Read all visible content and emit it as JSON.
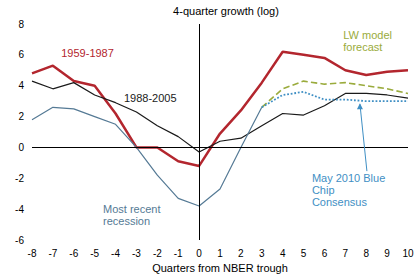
{
  "chart_data": {
    "type": "line",
    "x_label": "Quarters from NBER trough",
    "y_label": "4-quarter growth (log)",
    "x": [
      -8,
      -7,
      -6,
      -5,
      -4,
      -3,
      -2,
      -1,
      0,
      1,
      2,
      3,
      4,
      5,
      6,
      7,
      8,
      9,
      10
    ],
    "xlim": [
      -8,
      10
    ],
    "xticks": [
      -8,
      -7,
      -6,
      -5,
      -4,
      -3,
      -2,
      -1,
      0,
      1,
      2,
      3,
      4,
      5,
      6,
      7,
      8,
      9,
      10
    ],
    "ylim": [
      -6,
      8
    ],
    "yticks": [
      -6,
      -4,
      -2,
      0,
      2,
      4,
      6,
      8
    ],
    "grid": false,
    "series": [
      {
        "name": "1959-1987",
        "color": "#b3262e",
        "line_style": "solid",
        "values": [
          4.8,
          5.3,
          4.3,
          4.0,
          2.2,
          0.0,
          0.0,
          -0.9,
          -1.2,
          0.9,
          2.4,
          4.2,
          6.2,
          6.0,
          5.8,
          5.0,
          4.7,
          4.9,
          5.0
        ]
      },
      {
        "name": "1988-2005",
        "color": "#1a1a1a",
        "line_style": "solid",
        "values": [
          4.3,
          3.8,
          4.2,
          3.4,
          2.9,
          2.3,
          1.4,
          0.7,
          -0.3,
          0.4,
          0.6,
          1.4,
          2.2,
          2.1,
          2.7,
          3.5,
          3.5,
          3.4,
          3.2
        ]
      },
      {
        "name": "Most recent recession",
        "color": "#557a95",
        "line_style": "solid",
        "values": [
          1.8,
          2.6,
          2.5,
          2.0,
          1.5,
          0.0,
          -1.8,
          -3.3,
          -3.8,
          -2.7,
          0.0,
          2.6,
          null,
          null,
          null,
          null,
          null,
          null,
          null
        ]
      },
      {
        "name": "LW model forecast",
        "color": "#9aab3c",
        "line_style": "dashed",
        "values": [
          null,
          null,
          null,
          null,
          null,
          null,
          null,
          null,
          null,
          null,
          null,
          2.6,
          3.8,
          4.3,
          4.1,
          4.2,
          4.0,
          3.8,
          3.5
        ]
      },
      {
        "name": "May 2010 Blue Chip Consensus",
        "color": "#3f8fc4",
        "line_style": "dotted",
        "values": [
          null,
          null,
          null,
          null,
          null,
          null,
          null,
          null,
          null,
          null,
          null,
          2.6,
          3.4,
          3.6,
          3.1,
          3.1,
          3.0,
          3.0,
          3.0
        ]
      }
    ]
  }
}
